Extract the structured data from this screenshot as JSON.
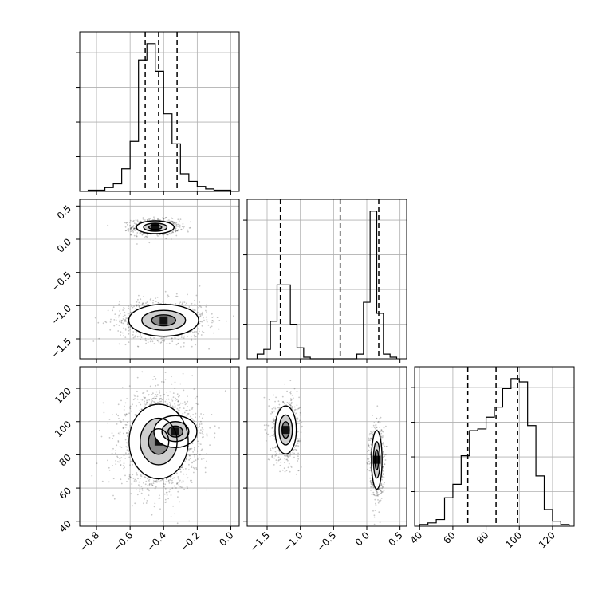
{
  "chart_data": {
    "type": "corner",
    "title": "",
    "grid": true,
    "parameters": [
      {
        "label": "",
        "range": [
          -0.9,
          0.05
        ],
        "ticks": [
          "−0.8",
          "−0.6",
          "−0.4",
          "−0.2",
          "0.0"
        ],
        "tick_values": [
          -0.8,
          -0.6,
          -0.4,
          -0.2,
          0.0
        ],
        "quantiles": [
          -0.51,
          -0.43,
          -0.32
        ]
      },
      {
        "label": "",
        "range": [
          -1.8,
          0.6
        ],
        "ticks": [
          "−1.5",
          "−1.0",
          "−0.5",
          "0.0",
          "0.5"
        ],
        "tick_values": [
          -1.5,
          -1.0,
          -0.5,
          0.0,
          0.5
        ],
        "quantiles": [
          -1.3,
          -0.4,
          0.18
        ]
      },
      {
        "label": "",
        "range": [
          37,
          133
        ],
        "ticks": [
          "40",
          "60",
          "80",
          "100",
          "120"
        ],
        "tick_values": [
          40,
          60,
          80,
          100,
          120
        ],
        "quantiles": [
          69,
          86,
          99
        ]
      }
    ],
    "histograms": [
      {
        "param": 0,
        "bin_start": -0.85,
        "bin_width": 0.05,
        "counts": [
          1,
          1,
          3,
          6,
          18,
          40,
          105,
          118,
          96,
          62,
          38,
          14,
          8,
          4,
          2,
          1,
          1
        ]
      },
      {
        "param": 1,
        "bin_start": -1.65,
        "bin_width": 0.1,
        "counts": [
          3,
          6,
          24,
          47,
          47,
          22,
          7,
          1,
          0,
          0,
          0,
          0,
          0,
          0,
          0,
          3,
          36,
          94,
          29,
          3,
          1
        ]
      },
      {
        "param": 2,
        "bin_start": 40,
        "bin_width": 5,
        "counts": [
          1,
          2,
          4,
          17,
          25,
          42,
          57,
          58,
          65,
          71,
          82,
          88,
          86,
          60,
          30,
          10,
          3,
          1
        ]
      }
    ],
    "pairs": [
      {
        "x_param": 0,
        "y_param": 1,
        "clusters": [
          {
            "center": [
              -0.45,
              0.18
            ],
            "sd": [
              0.07,
              0.06
            ],
            "n": 800
          },
          {
            "center": [
              -0.4,
              -1.22
            ],
            "sd": [
              0.13,
              0.15
            ],
            "n": 1100
          }
        ]
      },
      {
        "x_param": 0,
        "y_param": 2,
        "clusters": [
          {
            "center": [
              -0.43,
              88
            ],
            "sd": [
              0.11,
              14
            ],
            "n": 1900
          },
          {
            "center": [
              -0.33,
              94
            ],
            "sd": [
              0.08,
              6
            ],
            "n": 300
          }
        ]
      },
      {
        "x_param": 1,
        "y_param": 2,
        "clusters": [
          {
            "center": [
              -1.22,
              95
            ],
            "sd": [
              0.1,
              9
            ],
            "n": 800
          },
          {
            "center": [
              0.15,
              77
            ],
            "sd": [
              0.05,
              11
            ],
            "n": 800
          }
        ]
      }
    ]
  }
}
